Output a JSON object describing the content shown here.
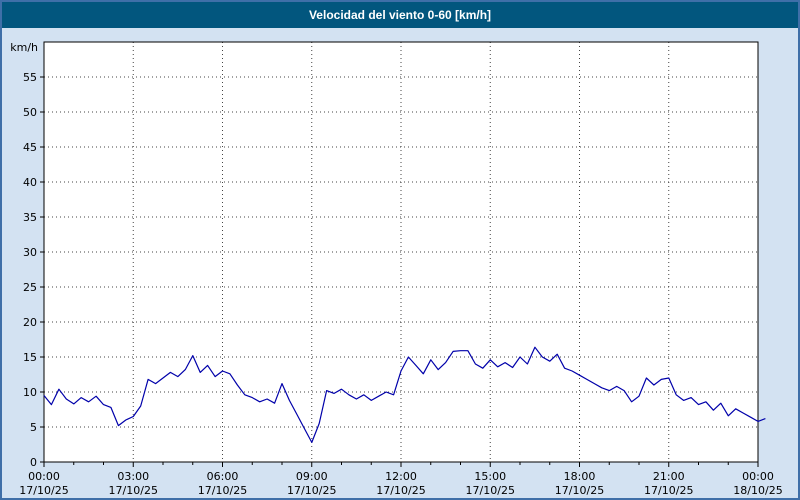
{
  "title": "Velocidad del viento 0-60 [km/h]",
  "colors": {
    "titlebar_bg": "#02567e",
    "titlebar_text": "#ffffff",
    "window_bg": "#d3e2f2",
    "window_border": "#3f6fa8",
    "plot_bg": "#ffffff",
    "grid": "#444444",
    "axis": "#000000",
    "line": "#0000aa",
    "tick_text": "#000000"
  },
  "chart_data": {
    "type": "line",
    "title": "Velocidad del viento 0-60 [km/h]",
    "ylabel": "km/h",
    "xlabel": "",
    "ylim": [
      0,
      60
    ],
    "y_ticks": [
      0,
      5,
      10,
      15,
      20,
      25,
      30,
      35,
      40,
      45,
      50,
      55
    ],
    "x_range_hours": [
      0,
      24
    ],
    "x_tick_hours": [
      0,
      3,
      6,
      9,
      12,
      15,
      18,
      21,
      24
    ],
    "x_tick_labels": [
      {
        "time": "00:00",
        "date": "17/10/25"
      },
      {
        "time": "03:00",
        "date": "17/10/25"
      },
      {
        "time": "06:00",
        "date": "17/10/25"
      },
      {
        "time": "09:00",
        "date": "17/10/25"
      },
      {
        "time": "12:00",
        "date": "17/10/25"
      },
      {
        "time": "15:00",
        "date": "17/10/25"
      },
      {
        "time": "18:00",
        "date": "17/10/25"
      },
      {
        "time": "21:00",
        "date": "17/10/25"
      },
      {
        "time": "00:00",
        "date": "18/10/25"
      }
    ],
    "grid": "dotted",
    "legend": "none",
    "series": [
      {
        "name": "Velocidad del viento",
        "color": "#0000aa",
        "x_start_hour": 0,
        "x_step_hours": 0.25,
        "values": [
          9.5,
          8.2,
          10.4,
          9.0,
          8.3,
          9.2,
          8.6,
          9.4,
          8.2,
          7.8,
          5.2,
          6.0,
          6.5,
          8.0,
          11.8,
          11.2,
          12.0,
          12.8,
          12.2,
          13.2,
          15.2,
          12.8,
          13.8,
          12.2,
          13.0,
          12.6,
          11.0,
          9.6,
          9.2,
          8.6,
          9.0,
          8.4,
          11.2,
          8.8,
          6.8,
          4.8,
          2.8,
          5.5,
          10.2,
          9.8,
          10.4,
          9.6,
          9.0,
          9.6,
          8.8,
          9.4,
          10.0,
          9.6,
          13.0,
          15.0,
          13.8,
          12.6,
          14.6,
          13.2,
          14.2,
          15.8,
          15.9,
          15.9,
          14.0,
          13.4,
          14.6,
          13.6,
          14.2,
          13.5,
          15.0,
          14.0,
          16.4,
          15.0,
          14.4,
          15.4,
          13.4,
          13.0,
          12.4,
          11.8,
          11.2,
          10.6,
          10.2,
          10.8,
          10.2,
          8.6,
          9.4,
          12.0,
          11.0,
          11.8,
          12.0,
          9.6,
          8.8,
          9.2,
          8.2,
          8.6,
          7.4,
          8.4,
          6.6,
          7.6,
          7.0,
          6.4,
          5.8,
          6.2
        ]
      }
    ]
  }
}
